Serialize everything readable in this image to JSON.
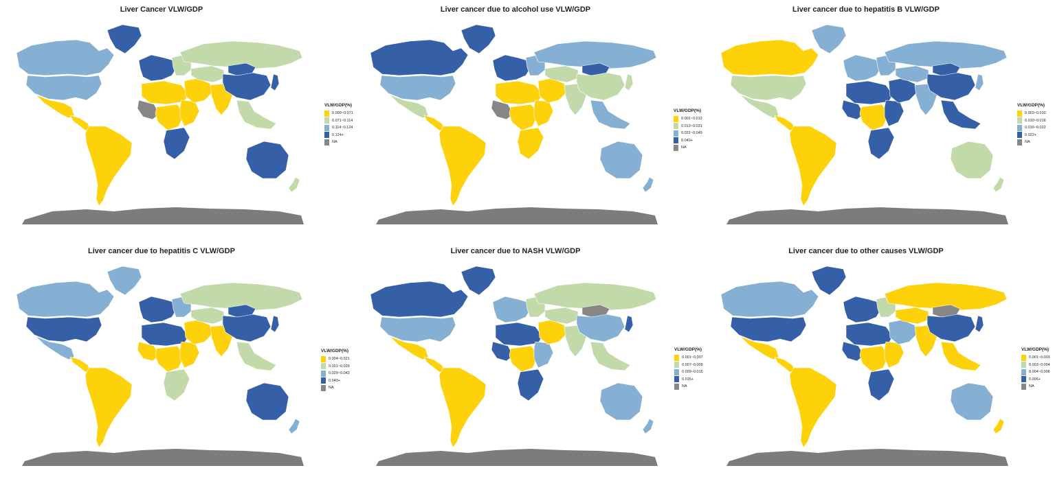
{
  "colors": {
    "q1": "#fdd20a",
    "q2": "#c2d9aa",
    "q3": "#85b0d4",
    "q4": "#3560a8",
    "na": "#878787",
    "antarctica": "#7c7c7c"
  },
  "panels": [
    {
      "title": "Liver Cancer VLW/GDP",
      "legend_title": "VLW/GDP(%)",
      "legend": [
        "0.009~0.071",
        "0.071~0.114",
        "0.114~0.124",
        "0.124+",
        "NA"
      ],
      "regions": {
        "canada": "q3",
        "greenland": "q4",
        "usa": "q3",
        "mexico": "q1",
        "central_america": "q1",
        "south_america": "q1",
        "europe_west": "q4",
        "europe_east": "q2",
        "russia": "q2",
        "north_africa": "q1",
        "west_africa": "na",
        "central_africa": "q1",
        "east_africa": "q1",
        "southern_africa": "q4",
        "middle_east": "q1",
        "central_asia": "q2",
        "south_asia": "q1",
        "china": "q4",
        "mongolia": "q4",
        "southeast_asia": "q2",
        "japan": "q4",
        "australia": "q4",
        "new_zealand": "q2"
      }
    },
    {
      "title": "Liver cancer due to alcohol use VLW/GDP",
      "legend_title": "VLW/GDP(%)",
      "legend": [
        "0.001~0.013",
        "0.013~0.031",
        "0.031~0.049",
        "0.049+",
        "NA"
      ],
      "regions": {
        "canada": "q4",
        "greenland": "q4",
        "usa": "q3",
        "mexico": "q2",
        "central_america": "q1",
        "south_america": "q1",
        "europe_west": "q4",
        "europe_east": "q3",
        "russia": "q3",
        "north_africa": "q1",
        "west_africa": "na",
        "central_africa": "q1",
        "east_africa": "q1",
        "southern_africa": "q1",
        "middle_east": "q1",
        "central_asia": "q2",
        "south_asia": "q2",
        "china": "q2",
        "mongolia": "q4",
        "southeast_asia": "q3",
        "japan": "q2",
        "australia": "q3",
        "new_zealand": "q3"
      }
    },
    {
      "title": "Liver cancer due to hepatitis B VLW/GDP",
      "legend_title": "VLW/GDP(%)",
      "legend": [
        "0.003~0.010",
        "0.010~0.016",
        "0.016~0.022",
        "0.022+",
        "NA"
      ],
      "regions": {
        "canada": "q1",
        "greenland": "q3",
        "usa": "q2",
        "mexico": "q2",
        "central_america": "q1",
        "south_america": "q1",
        "europe_west": "q3",
        "europe_east": "q3",
        "russia": "q3",
        "north_africa": "q4",
        "west_africa": "q4",
        "central_africa": "q1",
        "east_africa": "q4",
        "southern_africa": "q4",
        "middle_east": "q4",
        "central_asia": "q3",
        "south_asia": "q3",
        "china": "q4",
        "mongolia": "q4",
        "southeast_asia": "q4",
        "japan": "q3",
        "australia": "q2",
        "new_zealand": "q2"
      }
    },
    {
      "title": "Liver cancer due to hepatitis C VLW/GDP",
      "legend_title": "VLW/GDP(%)",
      "legend": [
        "0.004~0.021",
        "0.021~0.029",
        "0.029~0.043",
        "0.043+",
        "NA"
      ],
      "regions": {
        "canada": "q3",
        "greenland": "q3",
        "usa": "q4",
        "mexico": "q3",
        "central_america": "q1",
        "south_america": "q1",
        "europe_west": "q4",
        "europe_east": "q3",
        "russia": "q2",
        "north_africa": "q4",
        "west_africa": "q1",
        "central_africa": "q1",
        "east_africa": "q1",
        "southern_africa": "q2",
        "middle_east": "q1",
        "central_asia": "q2",
        "south_asia": "q1",
        "china": "q4",
        "mongolia": "q4",
        "southeast_asia": "q2",
        "japan": "q4",
        "australia": "q4",
        "new_zealand": "q3"
      }
    },
    {
      "title": "Liver cancer due to NASH VLW/GDP",
      "legend_title": "VLW/GDP(%)",
      "legend": [
        "0.001~0.007",
        "0.007~0.009",
        "0.009~0.015",
        "0.015+",
        "NA"
      ],
      "regions": {
        "canada": "q4",
        "greenland": "q4",
        "usa": "q3",
        "mexico": "q1",
        "central_america": "q1",
        "south_america": "q1",
        "europe_west": "q3",
        "europe_east": "q2",
        "russia": "q2",
        "north_africa": "q4",
        "west_africa": "q4",
        "central_africa": "q1",
        "east_africa": "q3",
        "southern_africa": "q4",
        "middle_east": "q1",
        "central_asia": "q2",
        "south_asia": "q2",
        "china": "q3",
        "mongolia": "na",
        "southeast_asia": "q2",
        "japan": "q4",
        "australia": "q3",
        "new_zealand": "q3"
      }
    },
    {
      "title": "Liver cancer due to other causes VLW/GDP",
      "legend_title": "VLW/GDP(%)",
      "legend": [
        "0.001~0.003",
        "0.003~0.004",
        "0.004~0.006",
        "0.006+",
        "NA"
      ],
      "regions": {
        "canada": "q3",
        "greenland": "q4",
        "usa": "q4",
        "mexico": "q1",
        "central_america": "q1",
        "south_america": "q1",
        "europe_west": "q4",
        "europe_east": "q2",
        "russia": "q1",
        "north_africa": "q4",
        "west_africa": "q4",
        "central_africa": "q1",
        "east_africa": "q1",
        "southern_africa": "q4",
        "middle_east": "q3",
        "central_asia": "q1",
        "south_asia": "q1",
        "china": "q4",
        "mongolia": "na",
        "southeast_asia": "q1",
        "japan": "q4",
        "australia": "q3",
        "new_zealand": "q1"
      }
    }
  ]
}
